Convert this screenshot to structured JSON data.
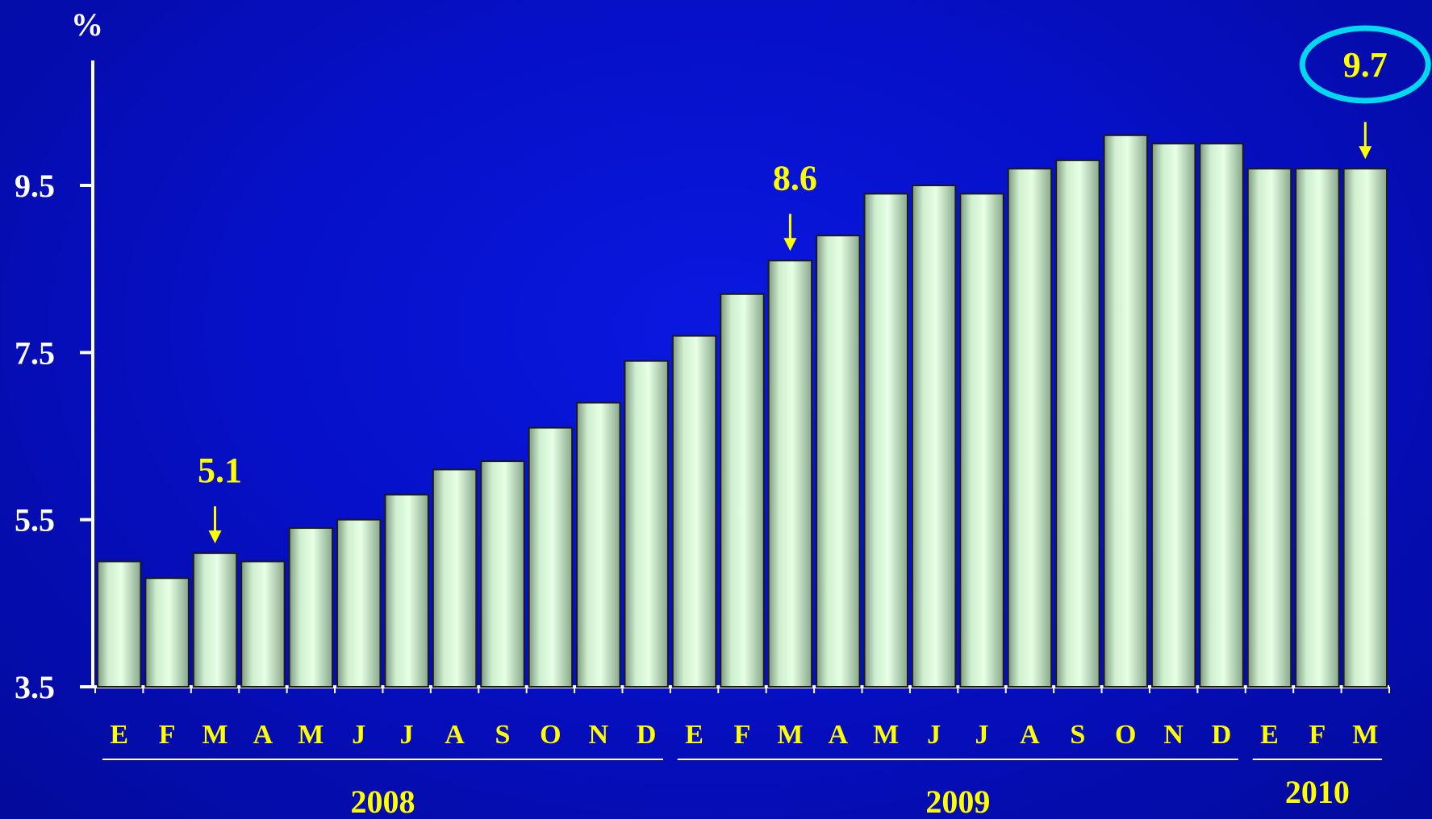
{
  "chart_data": {
    "type": "bar",
    "ylabel": "%",
    "ylim": [
      3.5,
      11.0
    ],
    "yticks": [
      "3.5",
      "5.5",
      "7.5",
      "9.5"
    ],
    "categories": [
      "E",
      "F",
      "M",
      "A",
      "M",
      "J",
      "J",
      "A",
      "S",
      "O",
      "N",
      "D",
      "E",
      "F",
      "M",
      "A",
      "M",
      "J",
      "J",
      "A",
      "S",
      "O",
      "N",
      "D",
      "E",
      "F",
      "M"
    ],
    "values": [
      5.0,
      4.8,
      5.1,
      5.0,
      5.4,
      5.5,
      5.8,
      6.1,
      6.2,
      6.6,
      6.9,
      7.4,
      7.7,
      8.2,
      8.6,
      8.9,
      9.4,
      9.5,
      9.4,
      9.7,
      9.8,
      10.1,
      10.0,
      10.0,
      9.7,
      9.7,
      9.7
    ],
    "year_groups": [
      {
        "label": "2008",
        "start": 0,
        "end": 11
      },
      {
        "label": "2009",
        "start": 12,
        "end": 23
      },
      {
        "label": "2010",
        "start": 24,
        "end": 26
      }
    ],
    "annotations": [
      {
        "index": 2,
        "text": "5.1",
        "highlight": false
      },
      {
        "index": 14,
        "text": "8.6",
        "highlight": false
      },
      {
        "index": 26,
        "text": "9.7",
        "highlight": true
      }
    ],
    "grid": false,
    "legend": "none",
    "colors": {
      "bar_light": "#e6ffe6",
      "bar_dark": "#6e8a70",
      "axis": "#ffffff",
      "label": "#ffff00",
      "highlight_ring": "#00d8f0"
    }
  }
}
